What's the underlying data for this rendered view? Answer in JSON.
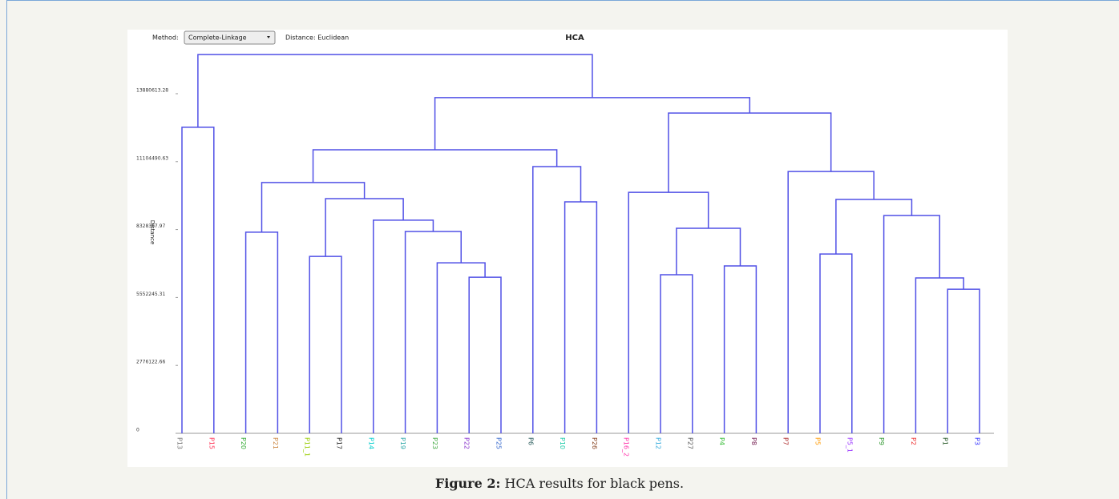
{
  "figure": {
    "toolbar": {
      "method_label": "Method:",
      "method_value": "Complete-Linkage",
      "distance": "Distance: Euclidean"
    },
    "caption": {
      "label": "Figure 2:",
      "text": "HCA results for black pens."
    },
    "chart_data": {
      "type": "dendrogram",
      "title": "HCA",
      "y_label": "Distance",
      "line_color": "#5050e6",
      "ylim": [
        0,
        15700000
      ],
      "yticks": [
        0,
        2776122.66,
        5552245.31,
        8328367.97,
        11104490.63,
        13880613.28
      ],
      "leaves": [
        {
          "name": "P13",
          "color": "#777777"
        },
        {
          "name": "P15",
          "color": "#ff3355"
        },
        {
          "name": "P20",
          "color": "#33aa33"
        },
        {
          "name": "P21",
          "color": "#cc8844"
        },
        {
          "name": "P11_1",
          "color": "#99cc00"
        },
        {
          "name": "P17",
          "color": "#222222"
        },
        {
          "name": "P14",
          "color": "#00cccc"
        },
        {
          "name": "P19",
          "color": "#33aaaa"
        },
        {
          "name": "P23",
          "color": "#44aa44"
        },
        {
          "name": "P22",
          "color": "#8833cc"
        },
        {
          "name": "P25",
          "color": "#3366cc"
        },
        {
          "name": "P6",
          "color": "#225555"
        },
        {
          "name": "P10",
          "color": "#22ccaa"
        },
        {
          "name": "P26",
          "color": "#884422"
        },
        {
          "name": "P16_2",
          "color": "#ff33aa"
        },
        {
          "name": "P12",
          "color": "#33aadd"
        },
        {
          "name": "P27",
          "color": "#555555"
        },
        {
          "name": "P4",
          "color": "#33bb33"
        },
        {
          "name": "P8",
          "color": "#772255"
        },
        {
          "name": "P7",
          "color": "#aa2222"
        },
        {
          "name": "P5",
          "color": "#ff9900"
        },
        {
          "name": "P5_1",
          "color": "#9933ff"
        },
        {
          "name": "P9",
          "color": "#339933"
        },
        {
          "name": "P2",
          "color": "#ee3333"
        },
        {
          "name": "P1",
          "color": "#225522"
        },
        {
          "name": "P3",
          "color": "#3333ff"
        }
      ],
      "merges": [
        {
          "children": [
            9,
            10
          ],
          "height": 6380000
        },
        {
          "children": [
            8,
            26
          ],
          "height": 6970000
        },
        {
          "children": [
            7,
            27
          ],
          "height": 8250000
        },
        {
          "children": [
            6,
            28
          ],
          "height": 8710000
        },
        {
          "children": [
            4,
            5
          ],
          "height": 7230000
        },
        {
          "children": [
            30,
            29
          ],
          "height": 9590000
        },
        {
          "children": [
            2,
            3
          ],
          "height": 8220000
        },
        {
          "children": [
            32,
            31
          ],
          "height": 10250000
        },
        {
          "children": [
            12,
            13
          ],
          "height": 9460000
        },
        {
          "children": [
            11,
            34
          ],
          "height": 10900000
        },
        {
          "children": [
            33,
            35
          ],
          "height": 11590000
        },
        {
          "children": [
            0,
            1
          ],
          "height": 12510000
        },
        {
          "children": [
            15,
            16
          ],
          "height": 6480000
        },
        {
          "children": [
            17,
            18
          ],
          "height": 6840000
        },
        {
          "children": [
            38,
            39
          ],
          "height": 8380000
        },
        {
          "children": [
            14,
            40
          ],
          "height": 9850000
        },
        {
          "children": [
            20,
            21
          ],
          "height": 7330000
        },
        {
          "children": [
            24,
            25
          ],
          "height": 5890000
        },
        {
          "children": [
            23,
            43
          ],
          "height": 6350000
        },
        {
          "children": [
            22,
            44
          ],
          "height": 8900000
        },
        {
          "children": [
            42,
            45
          ],
          "height": 9560000
        },
        {
          "children": [
            19,
            46
          ],
          "height": 10700000
        },
        {
          "children": [
            41,
            47
          ],
          "height": 13090000
        },
        {
          "children": [
            36,
            48
          ],
          "height": 13720000
        },
        {
          "children": [
            37,
            49
          ],
          "height": 15480000
        }
      ]
    }
  }
}
